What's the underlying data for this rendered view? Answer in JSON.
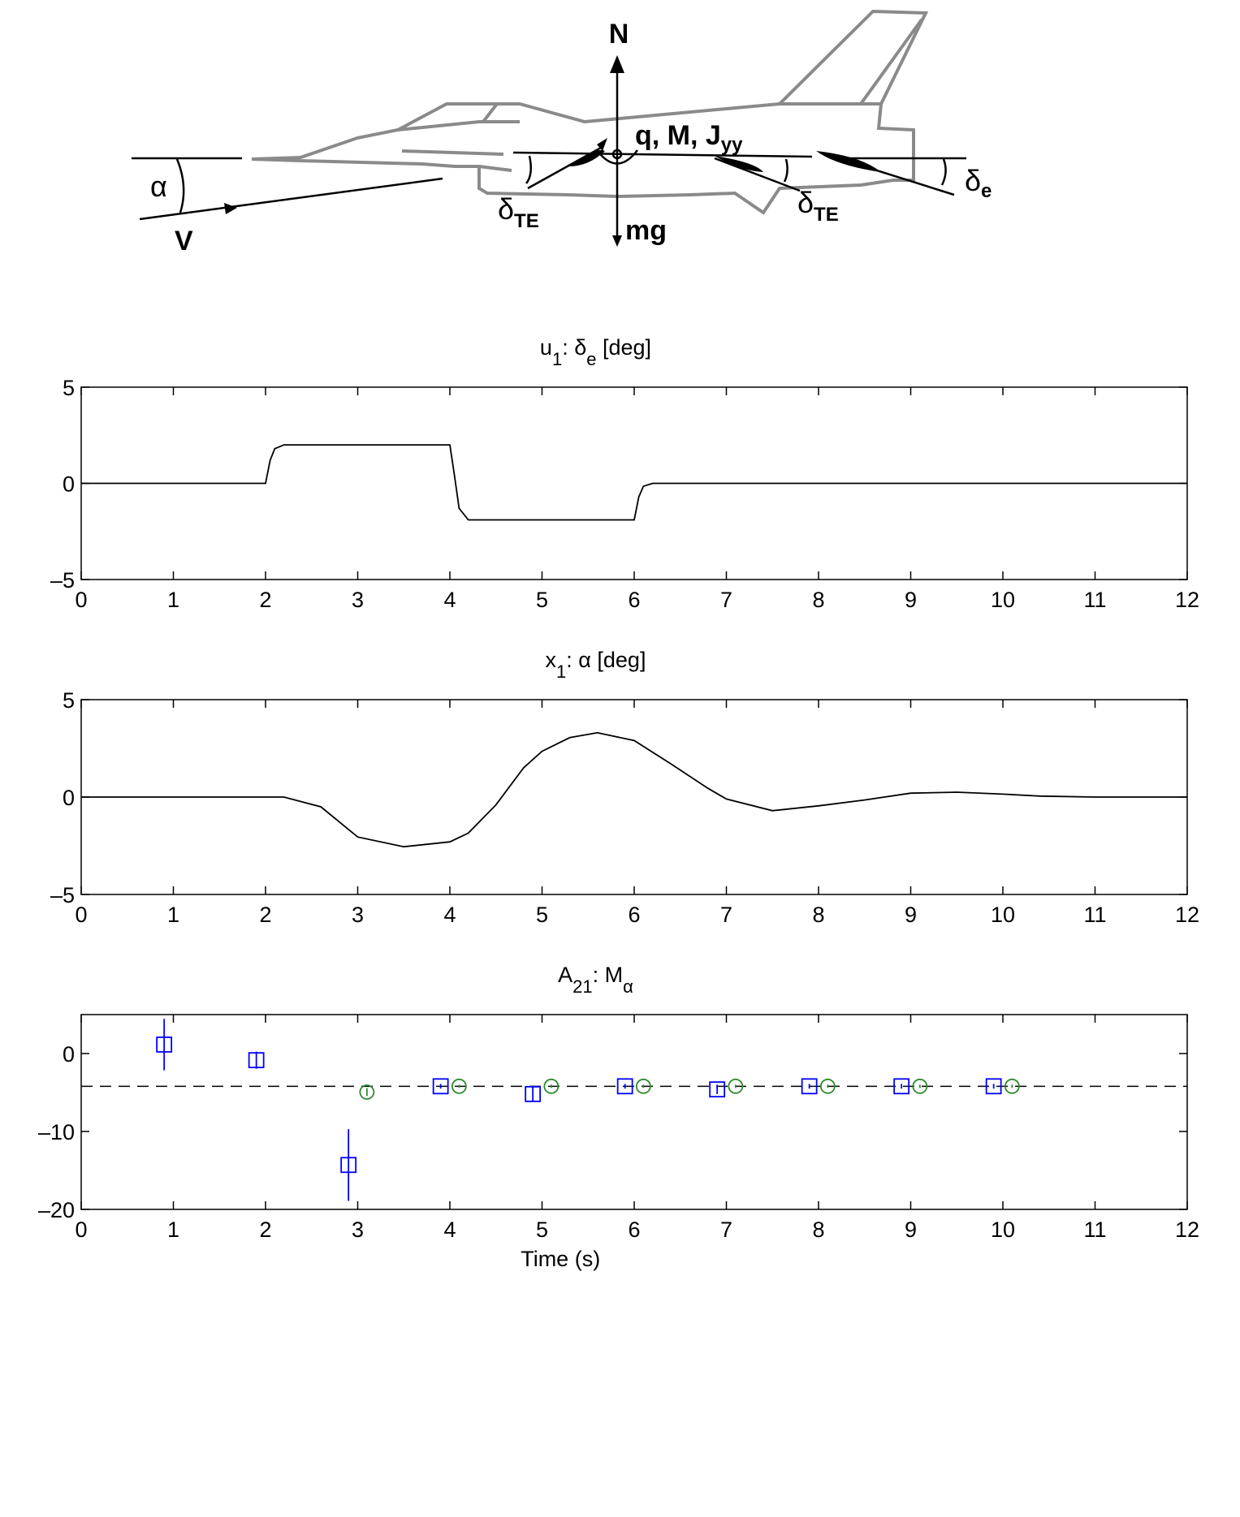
{
  "diagram": {
    "n": "N",
    "qmj": "q, M, J",
    "qmj_sub": "yy",
    "alpha": "α",
    "v": "V",
    "delta_te_left": "δ",
    "delta_te_left_sub": "TE",
    "delta_te_right": "δ",
    "delta_te_right_sub": "TE",
    "mg": "mg",
    "delta_e": "δ",
    "delta_e_sub": "e"
  },
  "chart_data": [
    {
      "type": "line",
      "title": [
        {
          "text": "u"
        },
        {
          "text": "1",
          "sub": true
        },
        {
          "text": ": δ"
        },
        {
          "text": "e",
          "sub": true
        },
        {
          "text": " [deg]"
        }
      ],
      "x": [
        0,
        2,
        2.05,
        2.1,
        2.2,
        4,
        4.05,
        4.1,
        4.2,
        6,
        6.05,
        6.1,
        6.2,
        12
      ],
      "values": [
        0,
        0,
        1.2,
        1.8,
        2,
        2,
        0.4,
        -1.3,
        -1.9,
        -1.9,
        -0.7,
        -0.15,
        0,
        0
      ],
      "color": "#000000",
      "xlim": [
        0,
        12
      ],
      "xticks": [
        0,
        1,
        2,
        3,
        4,
        5,
        6,
        7,
        8,
        9,
        10,
        11,
        12
      ],
      "ylim": [
        -5,
        5
      ],
      "yticks": [
        {
          "value": -5,
          "label": "–5"
        },
        0,
        5
      ]
    },
    {
      "type": "line",
      "title": [
        {
          "text": "x"
        },
        {
          "text": "1",
          "sub": true
        },
        {
          "text": ": α [deg]"
        }
      ],
      "x": [
        0,
        1,
        2,
        2.2,
        2.6,
        3,
        3.5,
        4,
        4.2,
        4.5,
        4.8,
        5,
        5.3,
        5.6,
        6,
        6.4,
        6.8,
        7,
        7.5,
        8,
        8.5,
        9,
        9.5,
        10,
        10.4,
        11,
        12
      ],
      "values": [
        0,
        0,
        0,
        0,
        -0.5,
        -2.05,
        -2.55,
        -2.3,
        -1.85,
        -0.4,
        1.5,
        2.35,
        3.05,
        3.3,
        2.9,
        1.7,
        0.45,
        -0.1,
        -0.7,
        -0.45,
        -0.15,
        0.2,
        0.25,
        0.15,
        0.05,
        0,
        0
      ],
      "color": "#000000",
      "xlim": [
        0,
        12
      ],
      "xticks": [
        0,
        1,
        2,
        3,
        4,
        5,
        6,
        7,
        8,
        9,
        10,
        11,
        12
      ],
      "ylim": [
        -5,
        5
      ],
      "yticks": [
        {
          "value": -5,
          "label": "–5"
        },
        0,
        5
      ]
    },
    {
      "type": "errorbar",
      "title": [
        {
          "text": "A"
        },
        {
          "text": "21",
          "sub": true
        },
        {
          "text": ": M"
        },
        {
          "text": "α",
          "sub": true
        }
      ],
      "xlabel": "Time (s)",
      "hline": -4.2,
      "series": [
        {
          "marker": "square",
          "color": "#0000ff",
          "x": [
            0.9,
            1.9,
            2.9,
            3.9,
            4.9,
            5.9,
            6.9,
            7.9,
            8.9,
            9.9
          ],
          "values": [
            1.15,
            -0.85,
            -14.3,
            -4.2,
            -5.2,
            -4.2,
            -4.6,
            -4.2,
            -4.2,
            -4.2
          ],
          "errors": [
            3.3,
            1.1,
            4.6,
            0.3,
            0.9,
            0.3,
            0.6,
            0.3,
            0.3,
            0.3
          ]
        },
        {
          "marker": "circle",
          "color": "#2e8b2e",
          "x": [
            3.1,
            4.1,
            5.1,
            6.1,
            7.1,
            8.1,
            9.1,
            10.1
          ],
          "values": [
            -4.95,
            -4.2,
            -4.2,
            -4.2,
            -4.2,
            -4.2,
            -4.2,
            -4.2
          ],
          "errors": [
            0.5,
            0.2,
            0.2,
            0.2,
            0.2,
            0.2,
            0.2,
            0.2
          ]
        }
      ],
      "xlim": [
        0,
        12
      ],
      "xticks": [
        0,
        1,
        2,
        3,
        4,
        5,
        6,
        7,
        8,
        9,
        10,
        11,
        12
      ],
      "ylim": [
        -20,
        5
      ],
      "yticks": [
        {
          "value": -20,
          "label": "–20"
        },
        {
          "value": -10,
          "label": "–10"
        },
        0
      ]
    }
  ]
}
